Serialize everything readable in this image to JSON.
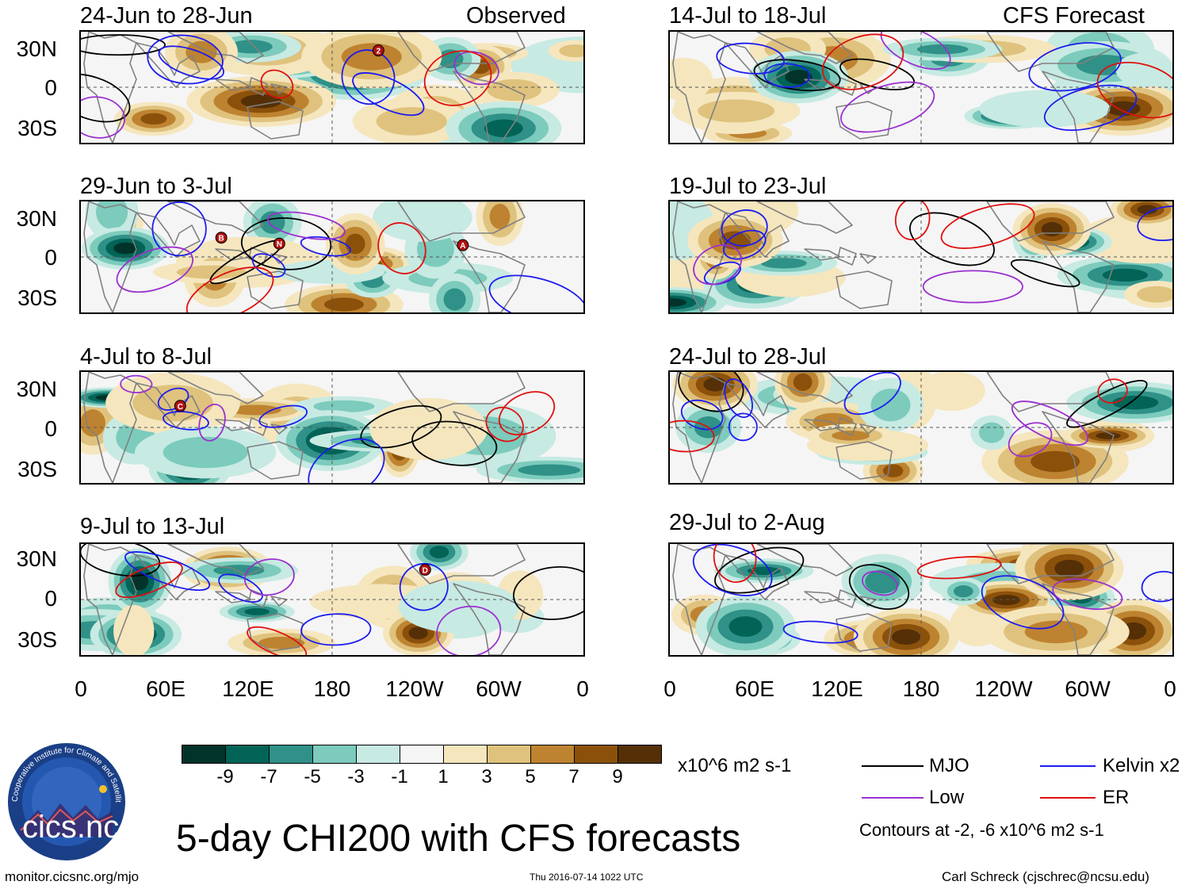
{
  "colors": {
    "scale": [
      "#01332a",
      "#016457",
      "#2f9187",
      "#7ccbbc",
      "#c7eae3",
      "#f5f5f5",
      "#f5e6be",
      "#dfc27d",
      "#be8330",
      "#8b510b",
      "#553007"
    ],
    "mjo": "#000000",
    "kelvin": "#1c1cf0",
    "low": "#9b30d0",
    "er": "#e01010",
    "land": "#808080"
  },
  "header": {
    "left_tag": "Observed",
    "right_tag": "CFS Forecast"
  },
  "lat_labels": [
    "30N",
    "0",
    "30S"
  ],
  "lon_labels": [
    "0",
    "60E",
    "120E",
    "180",
    "120W",
    "60W",
    "0"
  ],
  "panels": [
    {
      "title": "24-Jun to 28-Jun",
      "seed": 1,
      "markers": [
        "2"
      ]
    },
    {
      "title": "29-Jun to 3-Jul",
      "seed": 2,
      "markers": [
        "N",
        "A",
        "B"
      ]
    },
    {
      "title": "4-Jul to 8-Jul",
      "seed": 3,
      "markers": [
        "C"
      ]
    },
    {
      "title": "9-Jul to 13-Jul",
      "seed": 4,
      "markers": [
        "D"
      ]
    },
    {
      "title": "14-Jul to 18-Jul",
      "seed": 5,
      "markers": []
    },
    {
      "title": "19-Jul to 23-Jul",
      "seed": 6,
      "markers": []
    },
    {
      "title": "24-Jul to 28-Jul",
      "seed": 7,
      "markers": []
    },
    {
      "title": "29-Jul to 2-Aug",
      "seed": 8,
      "markers": []
    }
  ],
  "colorbar": {
    "labels": [
      "-9",
      "-7",
      "-5",
      "-3",
      "-1",
      "1",
      "3",
      "5",
      "7",
      "9"
    ],
    "units": "x10^6 m2 s-1"
  },
  "legend": {
    "mjo": "MJO",
    "kelvin": "Kelvin x2",
    "low": "Low",
    "er": "ER",
    "contours_note": "Contours at -2, -6 x10^6 m2 s-1"
  },
  "main_title": "5-day CHI200 with CFS forecasts",
  "logo": {
    "text": "cics.nc",
    "ring_text": "Cooperative Institute for Climate and Satellites"
  },
  "footer": {
    "left": "monitor.cicsnc.org/mjo",
    "center": "Thu 2016-07-14 1022 UTC",
    "right": "Carl Schreck (cjschrec@ncsu.edu)"
  }
}
